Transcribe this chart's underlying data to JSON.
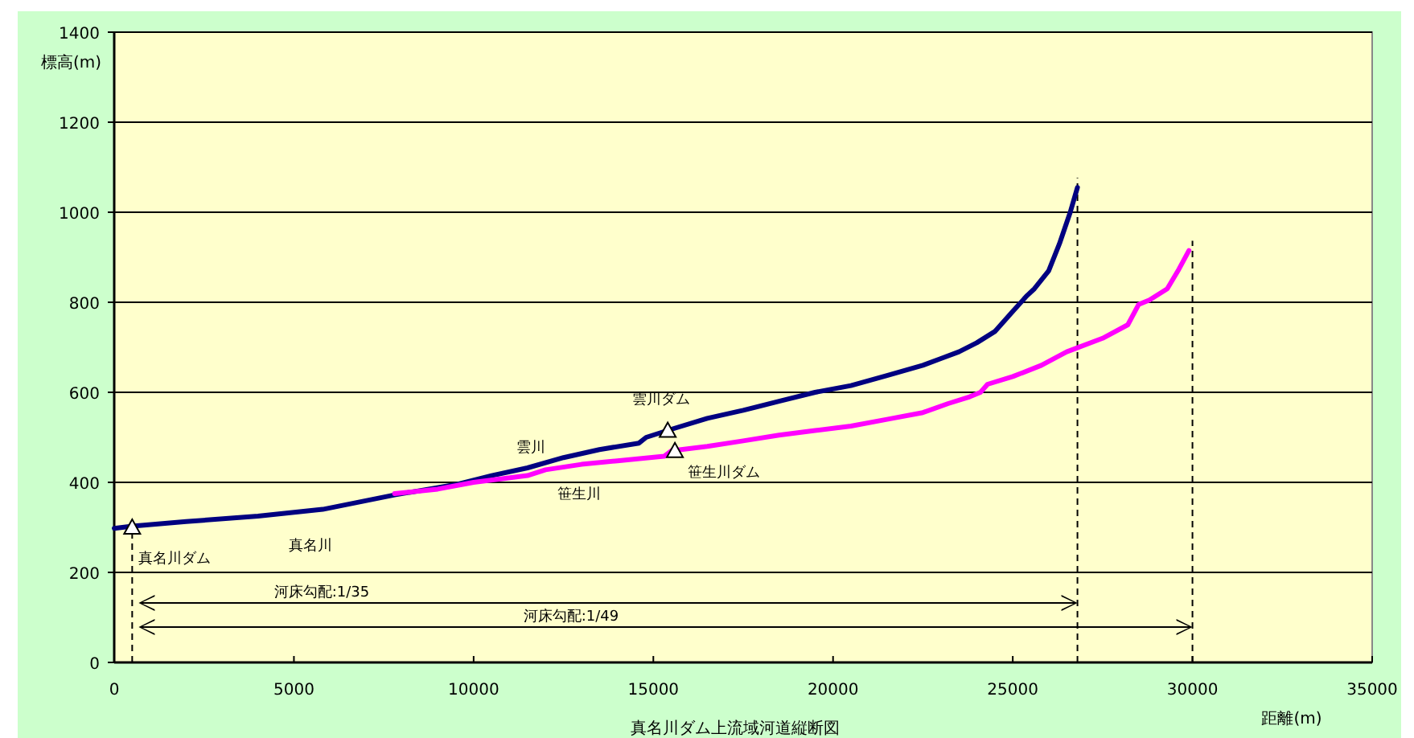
{
  "chart_data": {
    "type": "line",
    "title": "真名川ダム上流域河道縦断図",
    "xlabel": "距離(m)",
    "ylabel": "標高(m)",
    "xlim": [
      0,
      35000
    ],
    "xticks": [
      0,
      5000,
      10000,
      15000,
      20000,
      25000,
      30000,
      35000
    ],
    "ylim": [
      0,
      1400
    ],
    "yticks": [
      0,
      200,
      400,
      600,
      800,
      1000,
      1200,
      1400
    ],
    "grid": "y",
    "marker": "none",
    "line_style": "solid",
    "series": [
      {
        "color": "#000080",
        "x": [
          0,
          500,
          2000,
          4000,
          5800,
          7800,
          9500,
          10500,
          11500,
          12500,
          13500,
          14600,
          14800,
          15500,
          16500,
          17500,
          18500,
          19500,
          20500,
          21500,
          22500,
          23000,
          23500,
          24000,
          24500,
          25000,
          25400,
          25600,
          26000,
          26300,
          26600,
          26800
        ],
        "values": [
          298,
          303,
          313,
          325,
          340,
          372,
          395,
          415,
          432,
          455,
          473,
          487,
          500,
          518,
          542,
          560,
          580,
          600,
          615,
          637,
          660,
          675,
          690,
          710,
          735,
          780,
          815,
          830,
          870,
          930,
          1000,
          1055
        ]
      },
      {
        "color": "#ff00ff",
        "x": [
          7800,
          9000,
          10000,
          11500,
          12000,
          13000,
          14000,
          15300,
          15500,
          16500,
          17500,
          18500,
          19500,
          20500,
          21500,
          22500,
          23200,
          23800,
          24100,
          24300,
          25000,
          25800,
          26500,
          27500,
          28200,
          28500,
          28800,
          29300,
          29600,
          29900
        ],
        "values": [
          375,
          385,
          400,
          415,
          428,
          440,
          448,
          458,
          470,
          480,
          492,
          505,
          515,
          525,
          540,
          555,
          575,
          590,
          600,
          618,
          635,
          660,
          690,
          720,
          750,
          795,
          805,
          830,
          870,
          915
        ]
      }
    ],
    "ref_lines": [
      {
        "axis": "x",
        "value": 500,
        "line_style": "dashed",
        "color": "#000000"
      },
      {
        "axis": "x",
        "value": 26800,
        "line_style": "dashed",
        "color": "#000000"
      },
      {
        "axis": "x",
        "value": 30000,
        "line_style": "dashed",
        "color": "#000000"
      }
    ],
    "annotations": [
      {
        "text": "真名川ダム",
        "x": 500,
        "y": 300
      },
      {
        "text": "雲川ダム",
        "x": 15400,
        "y": 515
      },
      {
        "text": "笹生川ダム",
        "x": 15600,
        "y": 470
      },
      "真名川",
      "雲川",
      "笹生川",
      "河床勾配:1/35",
      "河床勾配:1/49"
    ]
  }
}
